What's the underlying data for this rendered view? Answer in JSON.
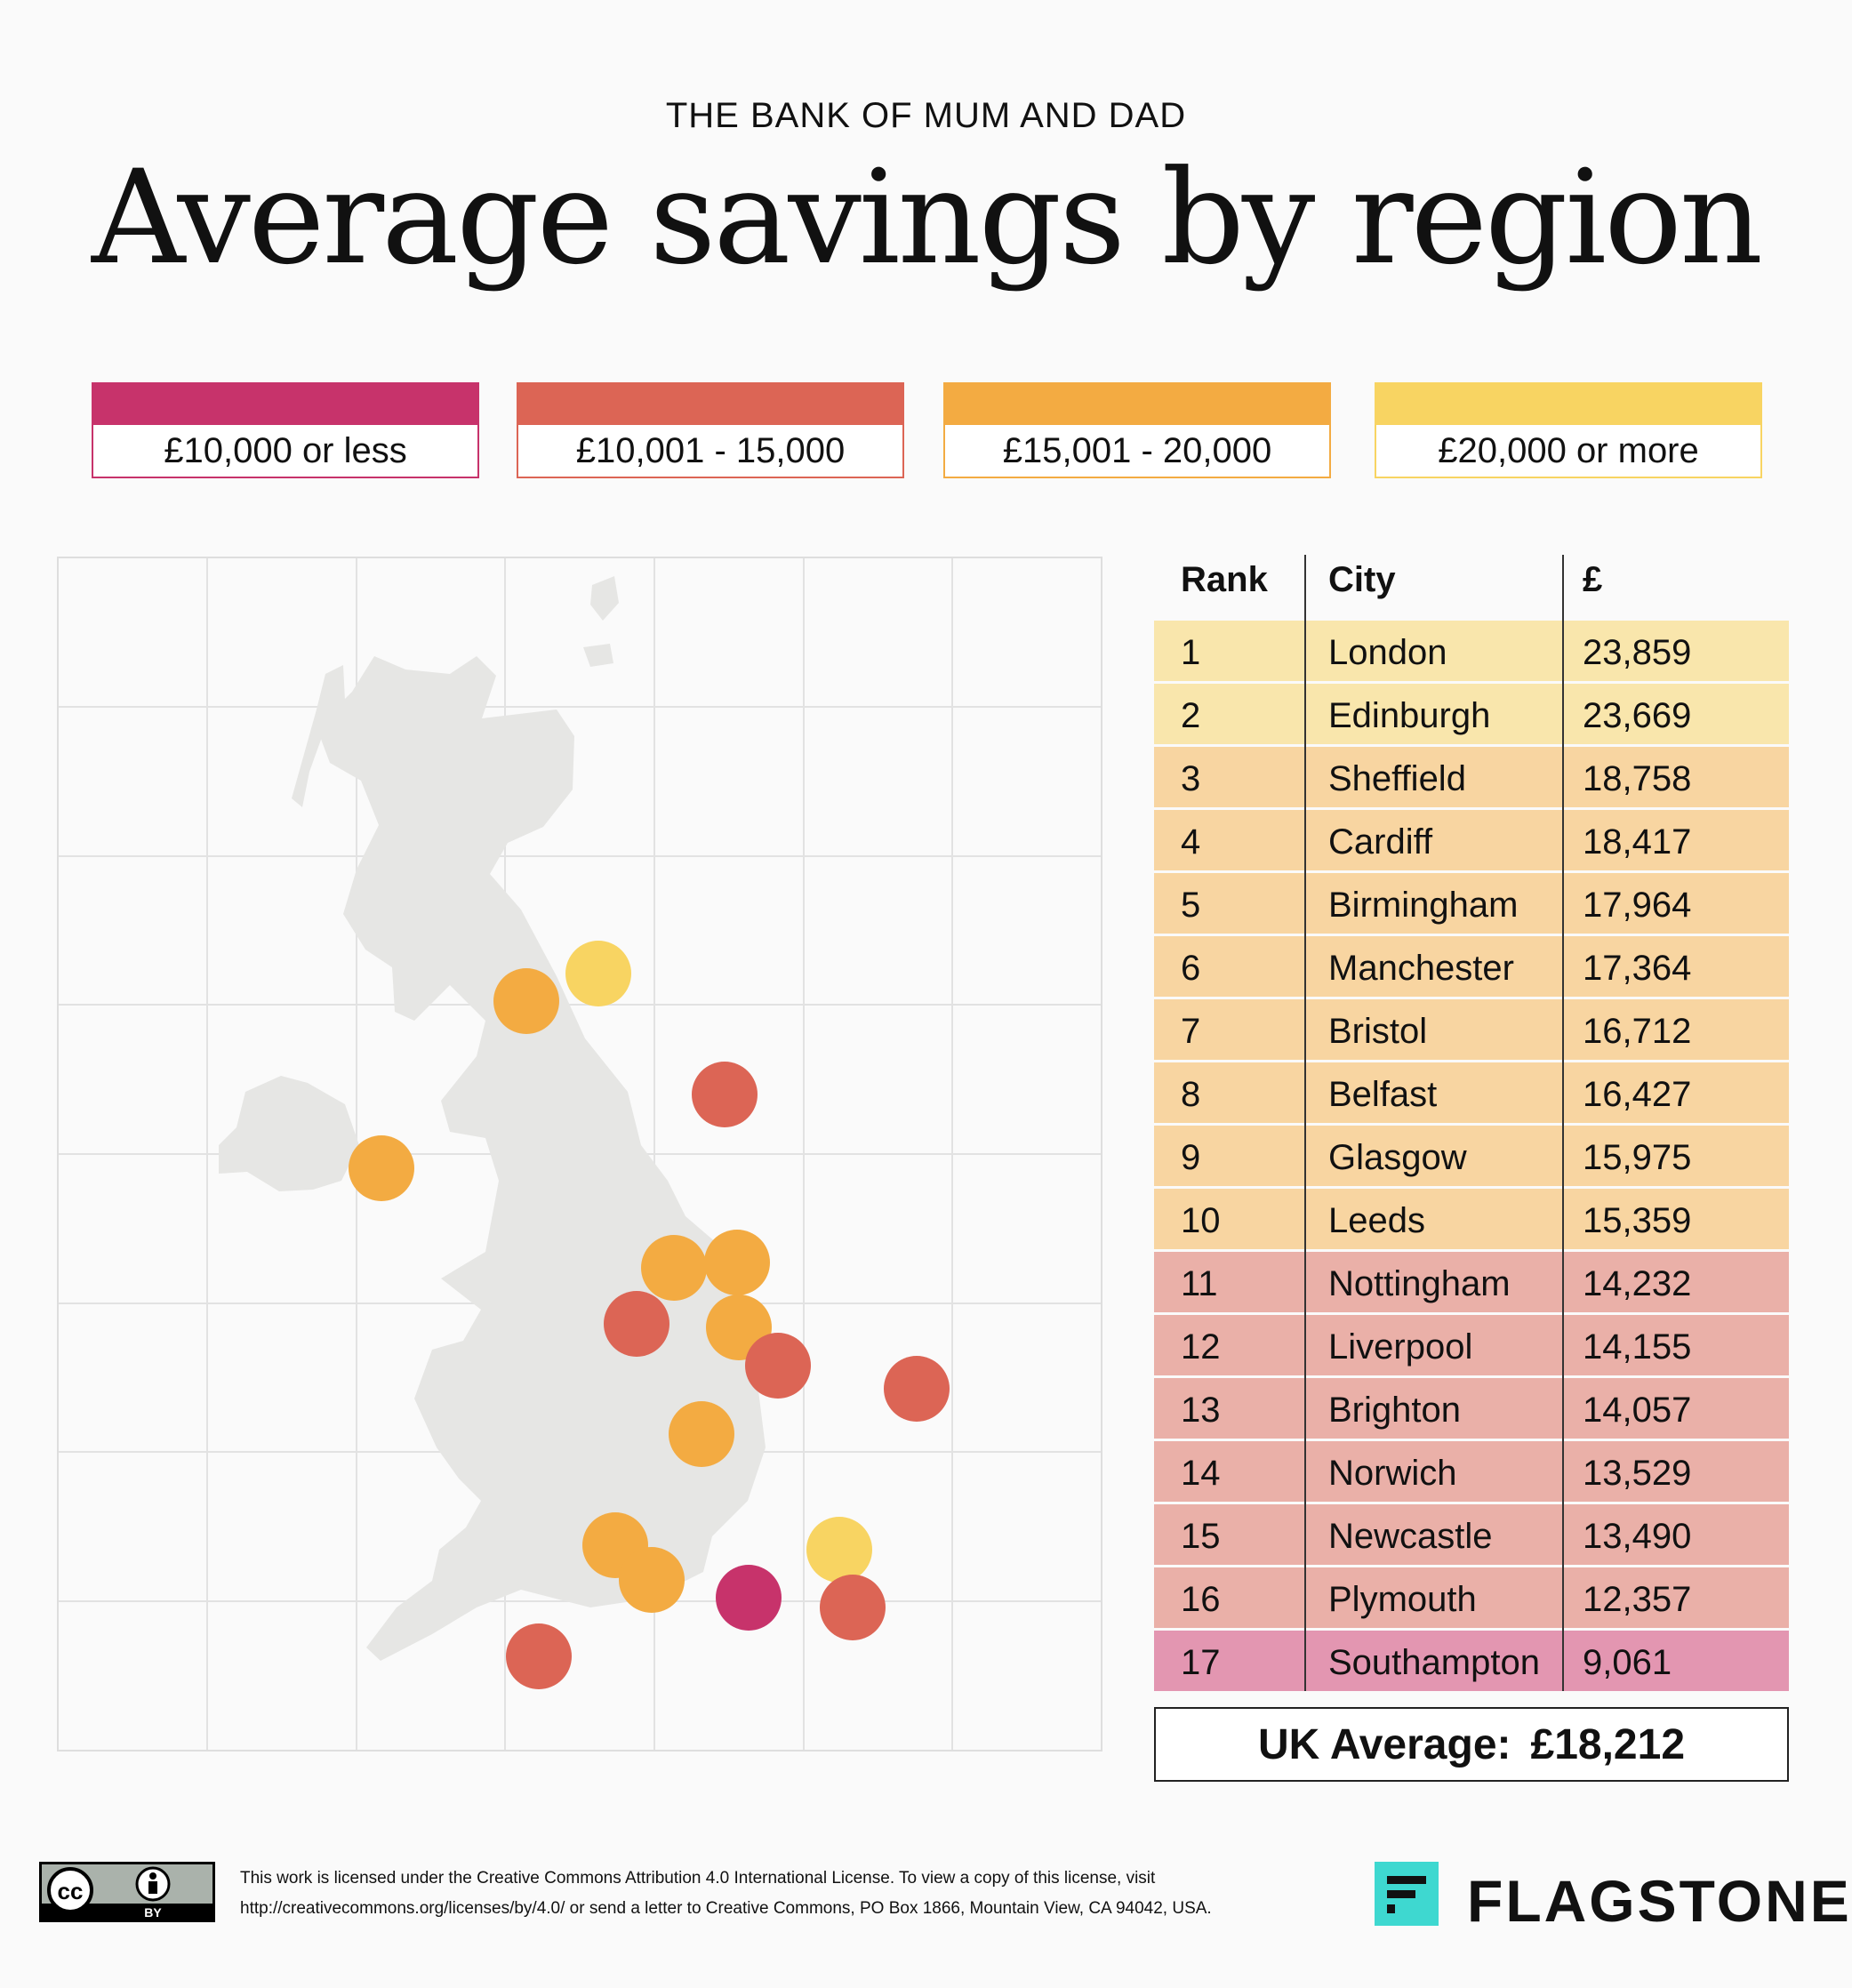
{
  "header": {
    "kicker": "THE BANK OF MUM AND DAD",
    "title": "Average savings by region"
  },
  "colors": {
    "lowest": "#c7336b",
    "low": "#dc6555",
    "mid": "#f3ab42",
    "high": "#f8d462",
    "row_high": "#f9e6ac",
    "row_mid": "#f8d5a1",
    "row_low": "#eab0a8",
    "row_lowest": "#e396b1"
  },
  "legend": [
    {
      "label": "£10,000 or less",
      "color": "#c7336b"
    },
    {
      "label": "£10,001 - 15,000",
      "color": "#dc6555"
    },
    {
      "label": "£15,001 - 20,000",
      "color": "#f3ab42"
    },
    {
      "label": "£20,000 or more",
      "color": "#f8d462"
    }
  ],
  "table": {
    "headers": {
      "rank": "Rank",
      "city": "City",
      "value": "£"
    },
    "rows": [
      {
        "rank": "1",
        "city": "London",
        "value": "23,859",
        "band": "high"
      },
      {
        "rank": "2",
        "city": "Edinburgh",
        "value": "23,669",
        "band": "high"
      },
      {
        "rank": "3",
        "city": "Sheffield",
        "value": "18,758",
        "band": "mid"
      },
      {
        "rank": "4",
        "city": "Cardiff",
        "value": "18,417",
        "band": "mid"
      },
      {
        "rank": "5",
        "city": "Birmingham",
        "value": "17,964",
        "band": "mid"
      },
      {
        "rank": "6",
        "city": "Manchester",
        "value": "17,364",
        "band": "mid"
      },
      {
        "rank": "7",
        "city": "Bristol",
        "value": "16,712",
        "band": "mid"
      },
      {
        "rank": "8",
        "city": "Belfast",
        "value": "16,427",
        "band": "mid"
      },
      {
        "rank": "9",
        "city": "Glasgow",
        "value": "15,975",
        "band": "mid"
      },
      {
        "rank": "10",
        "city": "Leeds",
        "value": "15,359",
        "band": "mid"
      },
      {
        "rank": "11",
        "city": "Nottingham",
        "value": "14,232",
        "band": "low"
      },
      {
        "rank": "12",
        "city": "Liverpool",
        "value": "14,155",
        "band": "low"
      },
      {
        "rank": "13",
        "city": "Brighton",
        "value": "14,057",
        "band": "low"
      },
      {
        "rank": "14",
        "city": "Norwich",
        "value": "13,529",
        "band": "low"
      },
      {
        "rank": "15",
        "city": "Newcastle",
        "value": "13,490",
        "band": "low"
      },
      {
        "rank": "16",
        "city": "Plymouth",
        "value": "12,357",
        "band": "low"
      },
      {
        "rank": "17",
        "city": "Southampton",
        "value": "9,061",
        "band": "lowest"
      }
    ]
  },
  "average": {
    "label": "UK Average:",
    "value": "£18,212"
  },
  "license": {
    "line1": "This work is licensed under the Creative Commons Attribution 4.0 International License. To view a copy of this license, visit",
    "line2": "http://creativecommons.org/licenses/by/4.0/ or send a letter to Creative Commons, PO Box 1866, Mountain View, CA 94042, USA.",
    "badge_cc": "cc",
    "badge_by": "BY"
  },
  "brand": {
    "name": "FLAGSTONE"
  }
}
